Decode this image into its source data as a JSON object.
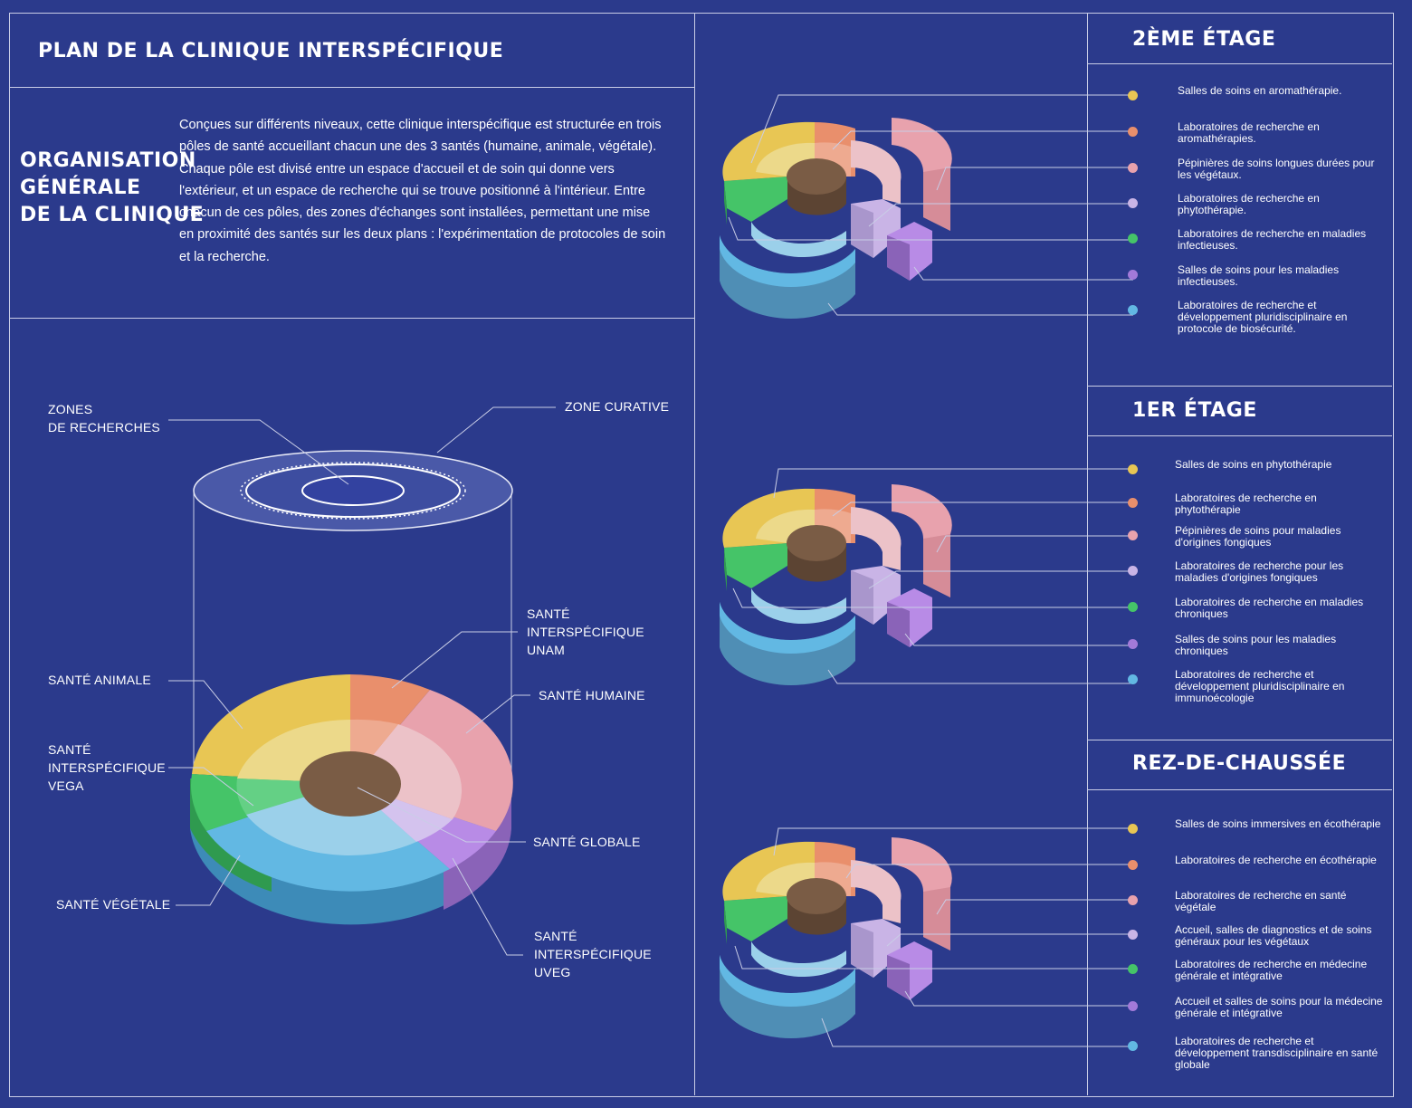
{
  "header": {
    "title": "PLAN DE LA CLINIQUE INTERSPÉCIFIQUE"
  },
  "intro": {
    "heading": [
      "ORGANISATION",
      "GÉNÉRALE",
      "DE LA CLINIQUE"
    ],
    "text": "Conçues sur différents niveaux, cette clinique interspécifique est structurée en trois pôles de santé accueillant chacun une des 3 santés (humaine, animale, végétale). Chaque pôle est divisé entre un espace d'accueil et de soin qui donne vers l'extérieur, et un espace de recherche qui se trouve positionné à l'intérieur. Entre chacun de ces pôles, des zones d'échanges sont installées, permettant une mise en proximité des santés sur les deux plans : l'expérimentation de protocoles de soin et la recherche."
  },
  "main_diagram": {
    "zones_recherches": [
      "ZONES",
      "DE RECHERCHES"
    ],
    "zone_curative": "ZONE CURATIVE",
    "sante_unam": [
      "SANTÉ",
      "INTERSPÉCIFIQUE",
      "UNAM"
    ],
    "sante_humaine": "SANTÉ HUMAINE",
    "sante_animale": "SANTÉ ANIMALE",
    "sante_vega": [
      "SANTÉ",
      "INTERSPÉCIFIQUE",
      "VEGA"
    ],
    "sante_globale": "SANTÉ GLOBALE",
    "sante_vegetale": "SANTÉ VÉGÉTALE",
    "sante_uveg": [
      "SANTÉ",
      "INTERSPÉCIFIQUE",
      "UVEG"
    ]
  },
  "colors": {
    "yellow": "#e8c654",
    "orange": "#e98f6c",
    "pink": "#e8a2ad",
    "lavender": "#c9b4e6",
    "green": "#45c468",
    "purple": "#a37ad9",
    "blue": "#62b8e3",
    "brown": "#7a5c45"
  },
  "floors": [
    {
      "title": "2ÈME ÉTAGE",
      "items": [
        {
          "color": "yellow",
          "text": "Salles de soins en aromathérapie."
        },
        {
          "color": "orange",
          "text": "Laboratoires de recherche en aromathérapies."
        },
        {
          "color": "pink",
          "text": "Pépinières de soins longues durées pour les végétaux."
        },
        {
          "color": "lavender",
          "text": "Laboratoires de recherche en phytothérapie."
        },
        {
          "color": "green",
          "text": "Laboratoires de recherche en maladies infectieuses."
        },
        {
          "color": "purple",
          "text": "Salles de soins pour les maladies infectieuses."
        },
        {
          "color": "blue",
          "text": "Laboratoires de recherche et développement pluridisciplinaire en protocole de biosécurité."
        }
      ]
    },
    {
      "title": "1ER ÉTAGE",
      "items": [
        {
          "color": "yellow",
          "text": "Salles de soins en phytothérapie"
        },
        {
          "color": "orange",
          "text": "Laboratoires de recherche en phytothérapie"
        },
        {
          "color": "pink",
          "text": "Pépinières de soins pour maladies d'origines fongiques"
        },
        {
          "color": "lavender",
          "text": "Laboratoires de recherche pour les maladies d'origines fongiques"
        },
        {
          "color": "green",
          "text": "Laboratoires de recherche en maladies chroniques"
        },
        {
          "color": "purple",
          "text": "Salles de soins pour les maladies chroniques"
        },
        {
          "color": "blue",
          "text": "Laboratoires de recherche et développement pluridisciplinaire en immunoécologie"
        }
      ]
    },
    {
      "title": "REZ-DE-CHAUSSÉE",
      "items": [
        {
          "color": "yellow",
          "text": "Salles de soins immersives en écothérapie"
        },
        {
          "color": "orange",
          "text": "Laboratoires de recherche en écothérapie"
        },
        {
          "color": "pink",
          "text": "Laboratoires de recherche en santé végétale"
        },
        {
          "color": "lavender",
          "text": "Accueil, salles de diagnostics et de soins généraux pour les végétaux"
        },
        {
          "color": "green",
          "text": "Laboratoires de recherche en médecine générale et intégrative"
        },
        {
          "color": "purple",
          "text": "Accueil et salles de soins pour la médecine générale et intégrative"
        },
        {
          "color": "blue",
          "text": "Laboratoires de recherche et développement transdisciplinaire en santé globale"
        }
      ]
    }
  ]
}
